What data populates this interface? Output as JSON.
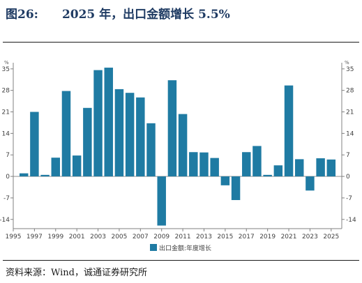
{
  "header": {
    "figure_label": "图26:",
    "title": "2025 年，出口金额增长 5.5%"
  },
  "source": "资料来源：Wind，诚通证券研究所",
  "chart_data": {
    "type": "bar",
    "unit_left": "%",
    "unit_right": "%",
    "legend": "出口金额:年度增长",
    "legend_position": "bottom-center",
    "series_color": "#1f7ba3",
    "ylim": [
      -17,
      37
    ],
    "yticks": [
      35,
      28,
      21,
      14,
      7,
      0,
      -7,
      -14
    ],
    "ytick_labels": [
      "35",
      "28",
      "21",
      "14",
      "7",
      "0",
      "-7",
      "-14"
    ],
    "xlim": [
      1995,
      2026
    ],
    "xticks": [
      1995,
      1997,
      1999,
      2001,
      2003,
      2005,
      2007,
      2009,
      2011,
      2013,
      2015,
      2017,
      2019,
      2021,
      2023,
      2025
    ],
    "xtick_labels": [
      "1995",
      "1997",
      "1999",
      "2001",
      "2003",
      "2005",
      "2007",
      "2009",
      "2011",
      "2013",
      "2015",
      "2017",
      "2019",
      "2021",
      "2023",
      "2025"
    ],
    "grid": false,
    "x": [
      1996,
      1997,
      1998,
      1999,
      2000,
      2001,
      2002,
      2003,
      2004,
      2005,
      2006,
      2007,
      2008,
      2009,
      2010,
      2011,
      2012,
      2013,
      2014,
      2015,
      2016,
      2017,
      2018,
      2019,
      2020,
      2021,
      2022,
      2023,
      2024,
      2025
    ],
    "values": [
      1.0,
      21.0,
      0.5,
      6.1,
      27.8,
      6.8,
      22.3,
      34.6,
      35.4,
      28.4,
      27.2,
      25.7,
      17.3,
      -16.0,
      31.3,
      20.3,
      7.9,
      7.8,
      6.0,
      -2.9,
      -7.7,
      7.9,
      9.9,
      0.5,
      3.6,
      29.6,
      5.6,
      -4.6,
      5.9,
      5.5
    ]
  }
}
